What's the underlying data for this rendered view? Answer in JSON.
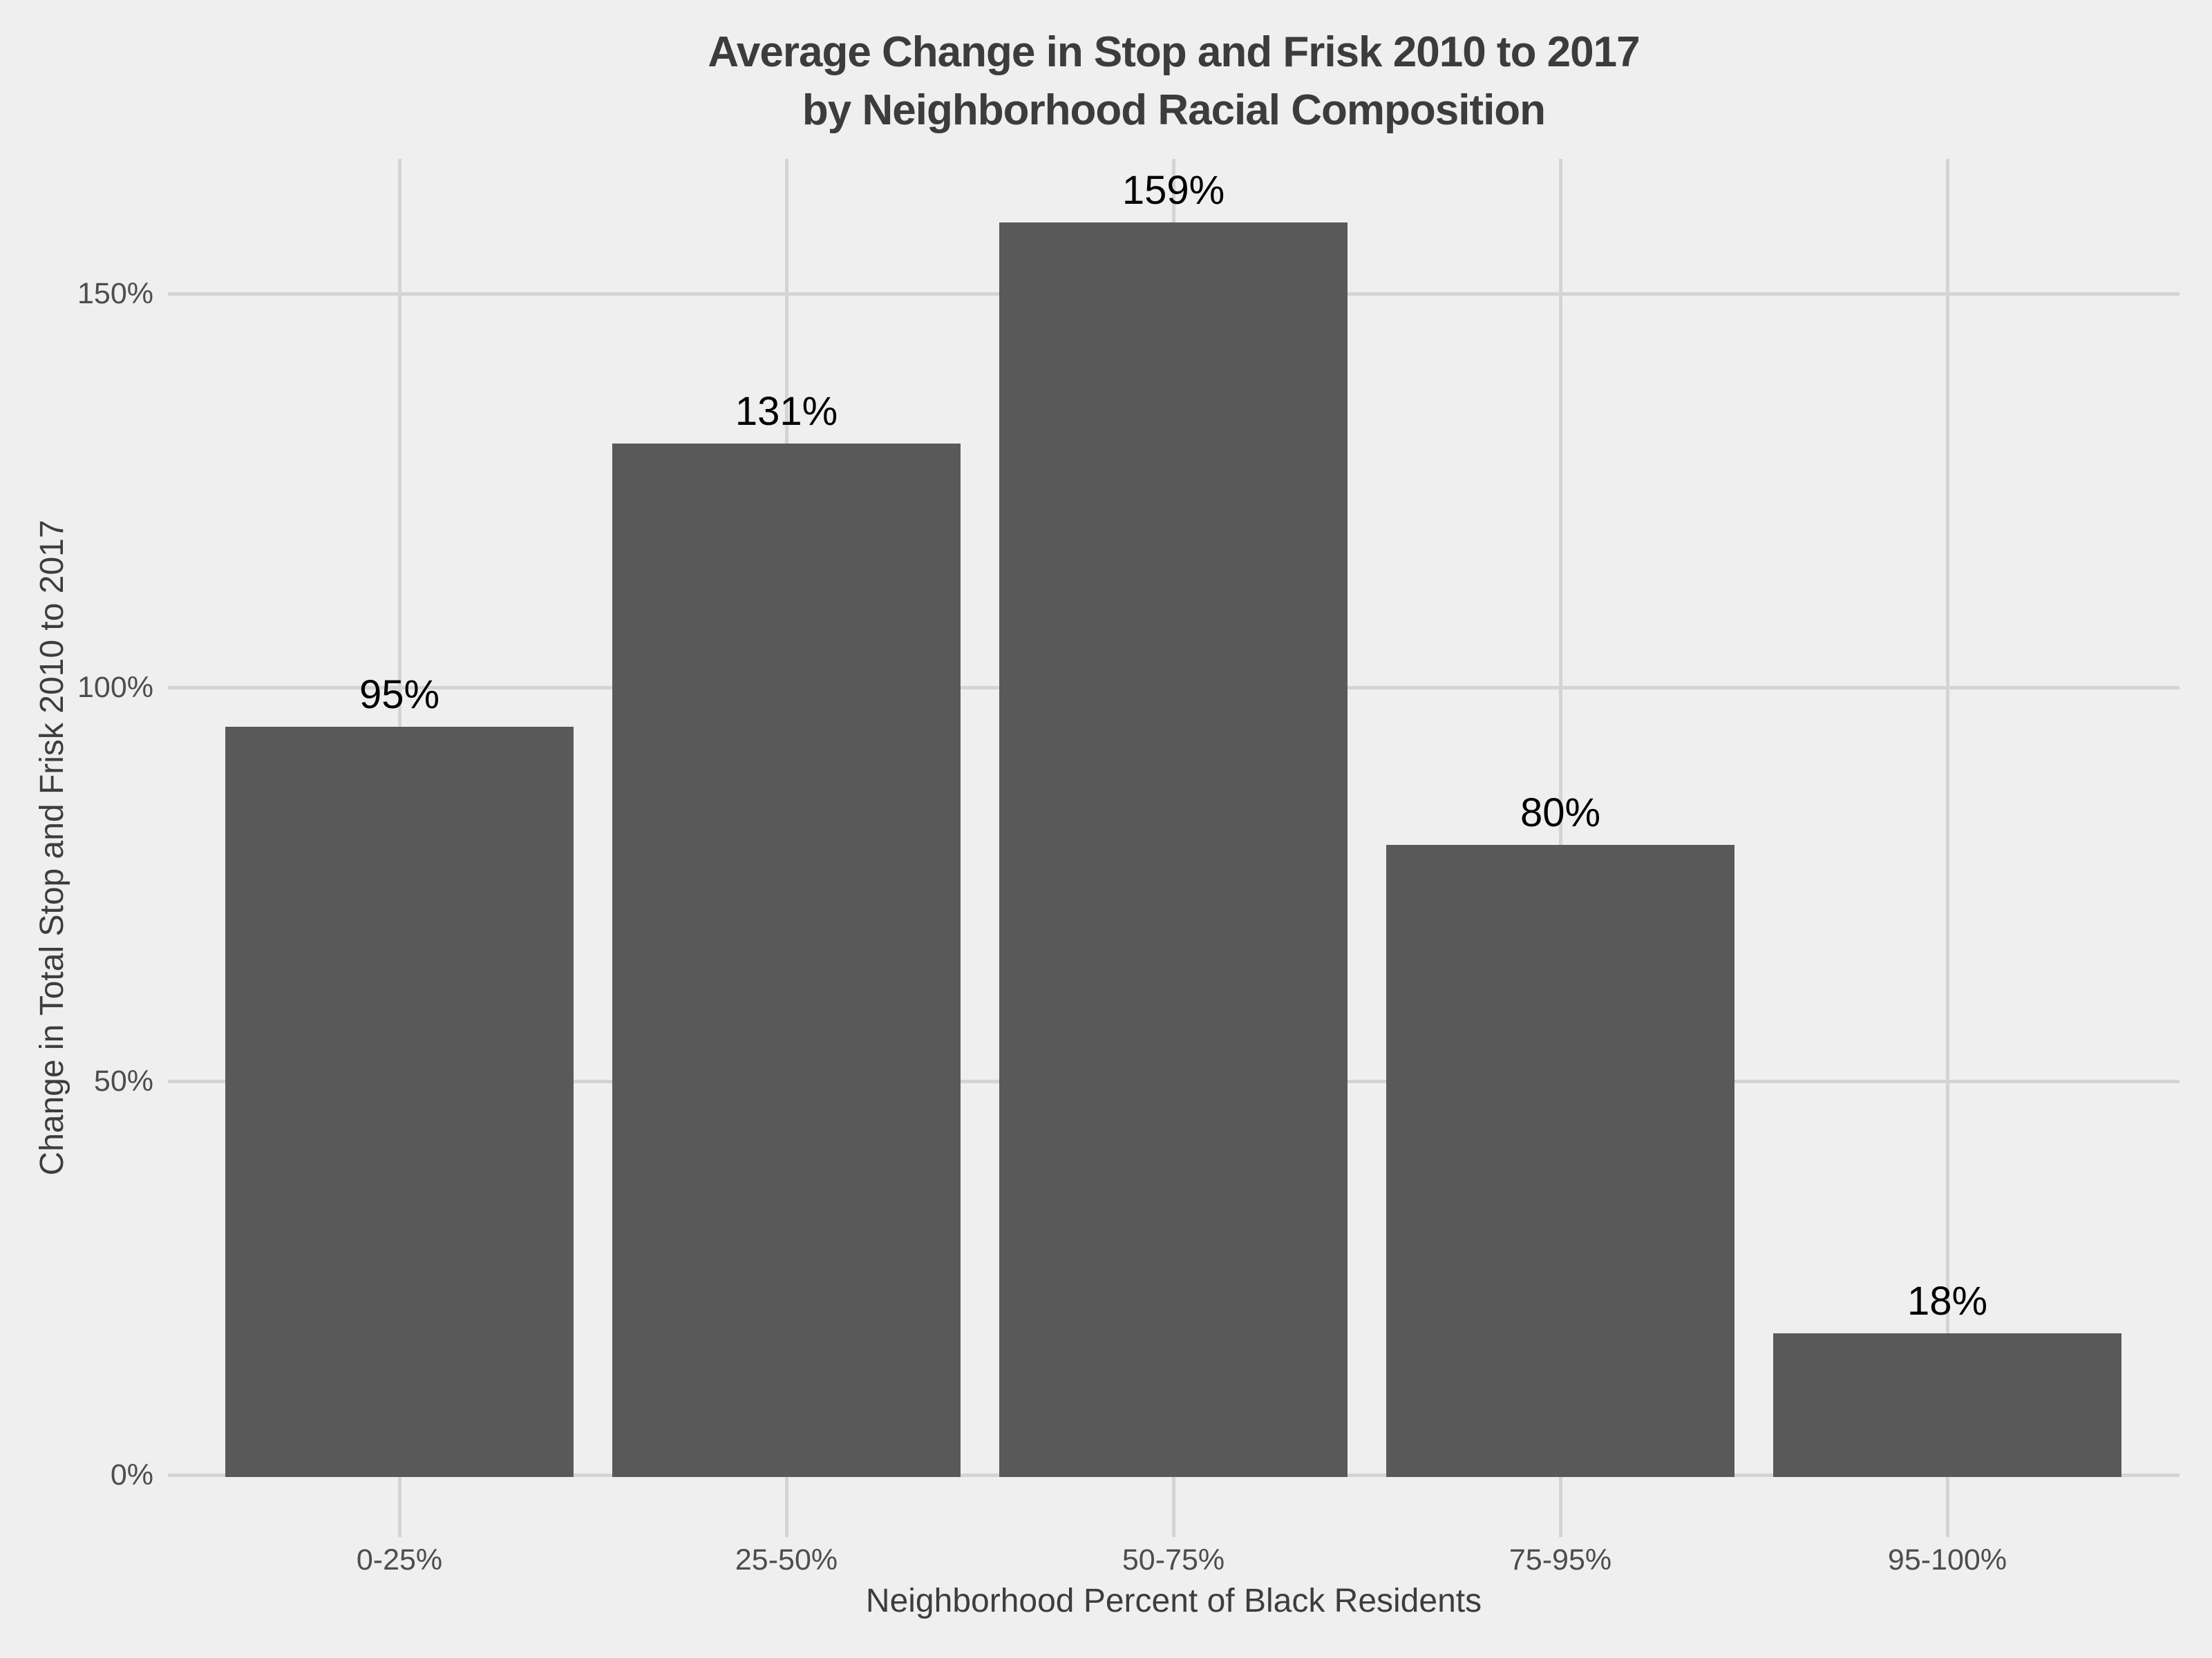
{
  "chart_data": {
    "type": "bar",
    "title_line1": "Average Change in Stop and Frisk 2010 to 2017",
    "title_line2": "by Neighborhood Racial Composition",
    "xlabel": "Neighborhood Percent of Black Residents",
    "ylabel": "Change in Total Stop and Frisk 2010 to 2017",
    "categories": [
      "0-25%",
      "25-50%",
      "50-75%",
      "75-95%",
      "95-100%"
    ],
    "values": [
      95,
      131,
      159,
      80,
      18
    ],
    "bar_value_labels": [
      "95%",
      "131%",
      "159%",
      "80%",
      "18%"
    ],
    "yticks": [
      {
        "value": 0,
        "label": "0%"
      },
      {
        "value": 50,
        "label": "50%"
      },
      {
        "value": 100,
        "label": "100%"
      },
      {
        "value": 150,
        "label": "150%"
      }
    ],
    "ylim": [
      0,
      167
    ],
    "grid": "major-only",
    "legend": "none",
    "colors": {
      "bar_fill": "#595959",
      "background": "#EFEFEF",
      "gridline": "#D4D4D4",
      "title_text": "#3C3C3C",
      "tick_text": "#4D4D4D",
      "axis_title_text": "#3D3D3D",
      "bar_label_text": "#000000"
    }
  }
}
